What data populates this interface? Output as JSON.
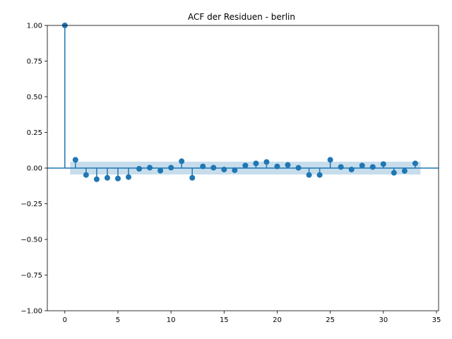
{
  "chart_data": {
    "type": "scatter",
    "subtype": "stem-acf",
    "title": "ACF der Residuen - berlin",
    "xlabel": "",
    "ylabel": "",
    "xlim": [
      -1.65,
      35.2
    ],
    "ylim": [
      -1.0,
      1.0
    ],
    "xticks": [
      0,
      5,
      10,
      15,
      20,
      25,
      30,
      35
    ],
    "yticks": [
      -1.0,
      -0.75,
      -0.5,
      -0.25,
      0.0,
      0.25,
      0.5,
      0.75,
      1.0
    ],
    "ytick_labels": [
      "−1.00",
      "−0.75",
      "−0.50",
      "−0.25",
      "0.00",
      "0.25",
      "0.50",
      "0.75",
      "1.00"
    ],
    "grid": false,
    "legend": false,
    "color": "#1f77b4",
    "confidence_band": {
      "lower": -0.045,
      "upper": 0.045,
      "x_start": 0.5,
      "x_end": 33.5,
      "color": "#1f77b4",
      "opacity": 0.25
    },
    "lags": [
      0,
      1,
      2,
      3,
      4,
      5,
      6,
      7,
      8,
      9,
      10,
      11,
      12,
      13,
      14,
      15,
      16,
      17,
      18,
      19,
      20,
      21,
      22,
      23,
      24,
      25,
      26,
      27,
      28,
      29,
      30,
      31,
      32,
      33
    ],
    "values": [
      1.0,
      0.058,
      -0.048,
      -0.078,
      -0.068,
      -0.073,
      -0.063,
      -0.005,
      0.003,
      -0.018,
      0.003,
      0.048,
      -0.068,
      0.012,
      0.003,
      -0.01,
      -0.015,
      0.018,
      0.033,
      0.043,
      0.012,
      0.022,
      0.002,
      -0.048,
      -0.048,
      0.058,
      0.008,
      -0.01,
      0.018,
      0.008,
      0.028,
      -0.033,
      -0.02,
      0.033
    ]
  }
}
